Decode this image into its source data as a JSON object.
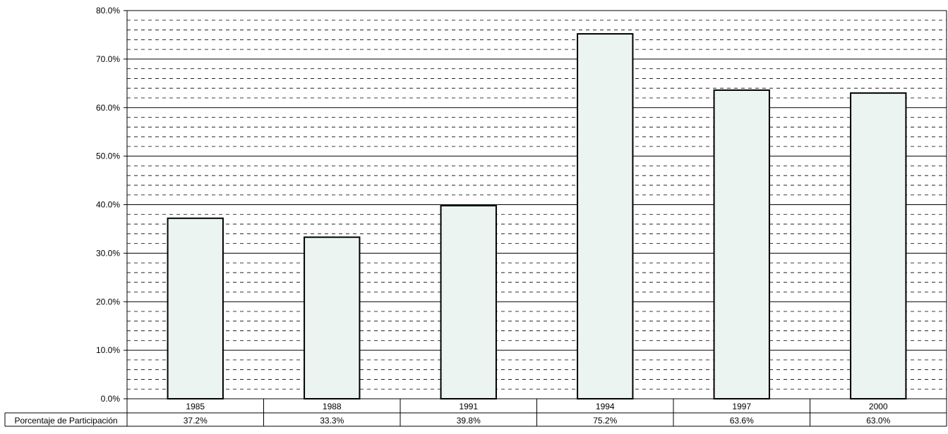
{
  "colors": {
    "bar_fill": "#EBF4F0",
    "bar_stroke": "#000000",
    "major_grid": "#000000",
    "minor_grid": "#000000"
  },
  "chart_data": {
    "type": "bar",
    "title": "",
    "xlabel": "",
    "ylabel": "",
    "categories": [
      "1985",
      "1988",
      "1991",
      "1994",
      "1997",
      "2000"
    ],
    "series": [
      {
        "name": "Porcentaje de Participación",
        "values": [
          37.2,
          33.3,
          39.8,
          75.2,
          63.6,
          63.0
        ],
        "labels": [
          "37.2%",
          "33.3%",
          "39.8%",
          "75.2%",
          "63.6%",
          "63.0%"
        ]
      }
    ],
    "ylim": [
      0,
      80
    ],
    "y_ticks": [
      0,
      10,
      20,
      30,
      40,
      50,
      60,
      70,
      80
    ],
    "y_tick_labels": [
      "0.0%",
      "10.0%",
      "20.0%",
      "30.0%",
      "40.0%",
      "50.0%",
      "60.0%",
      "70.0%",
      "80.0%"
    ],
    "minor_grid_step": 2,
    "grid": true,
    "legend": "data-table-below"
  }
}
